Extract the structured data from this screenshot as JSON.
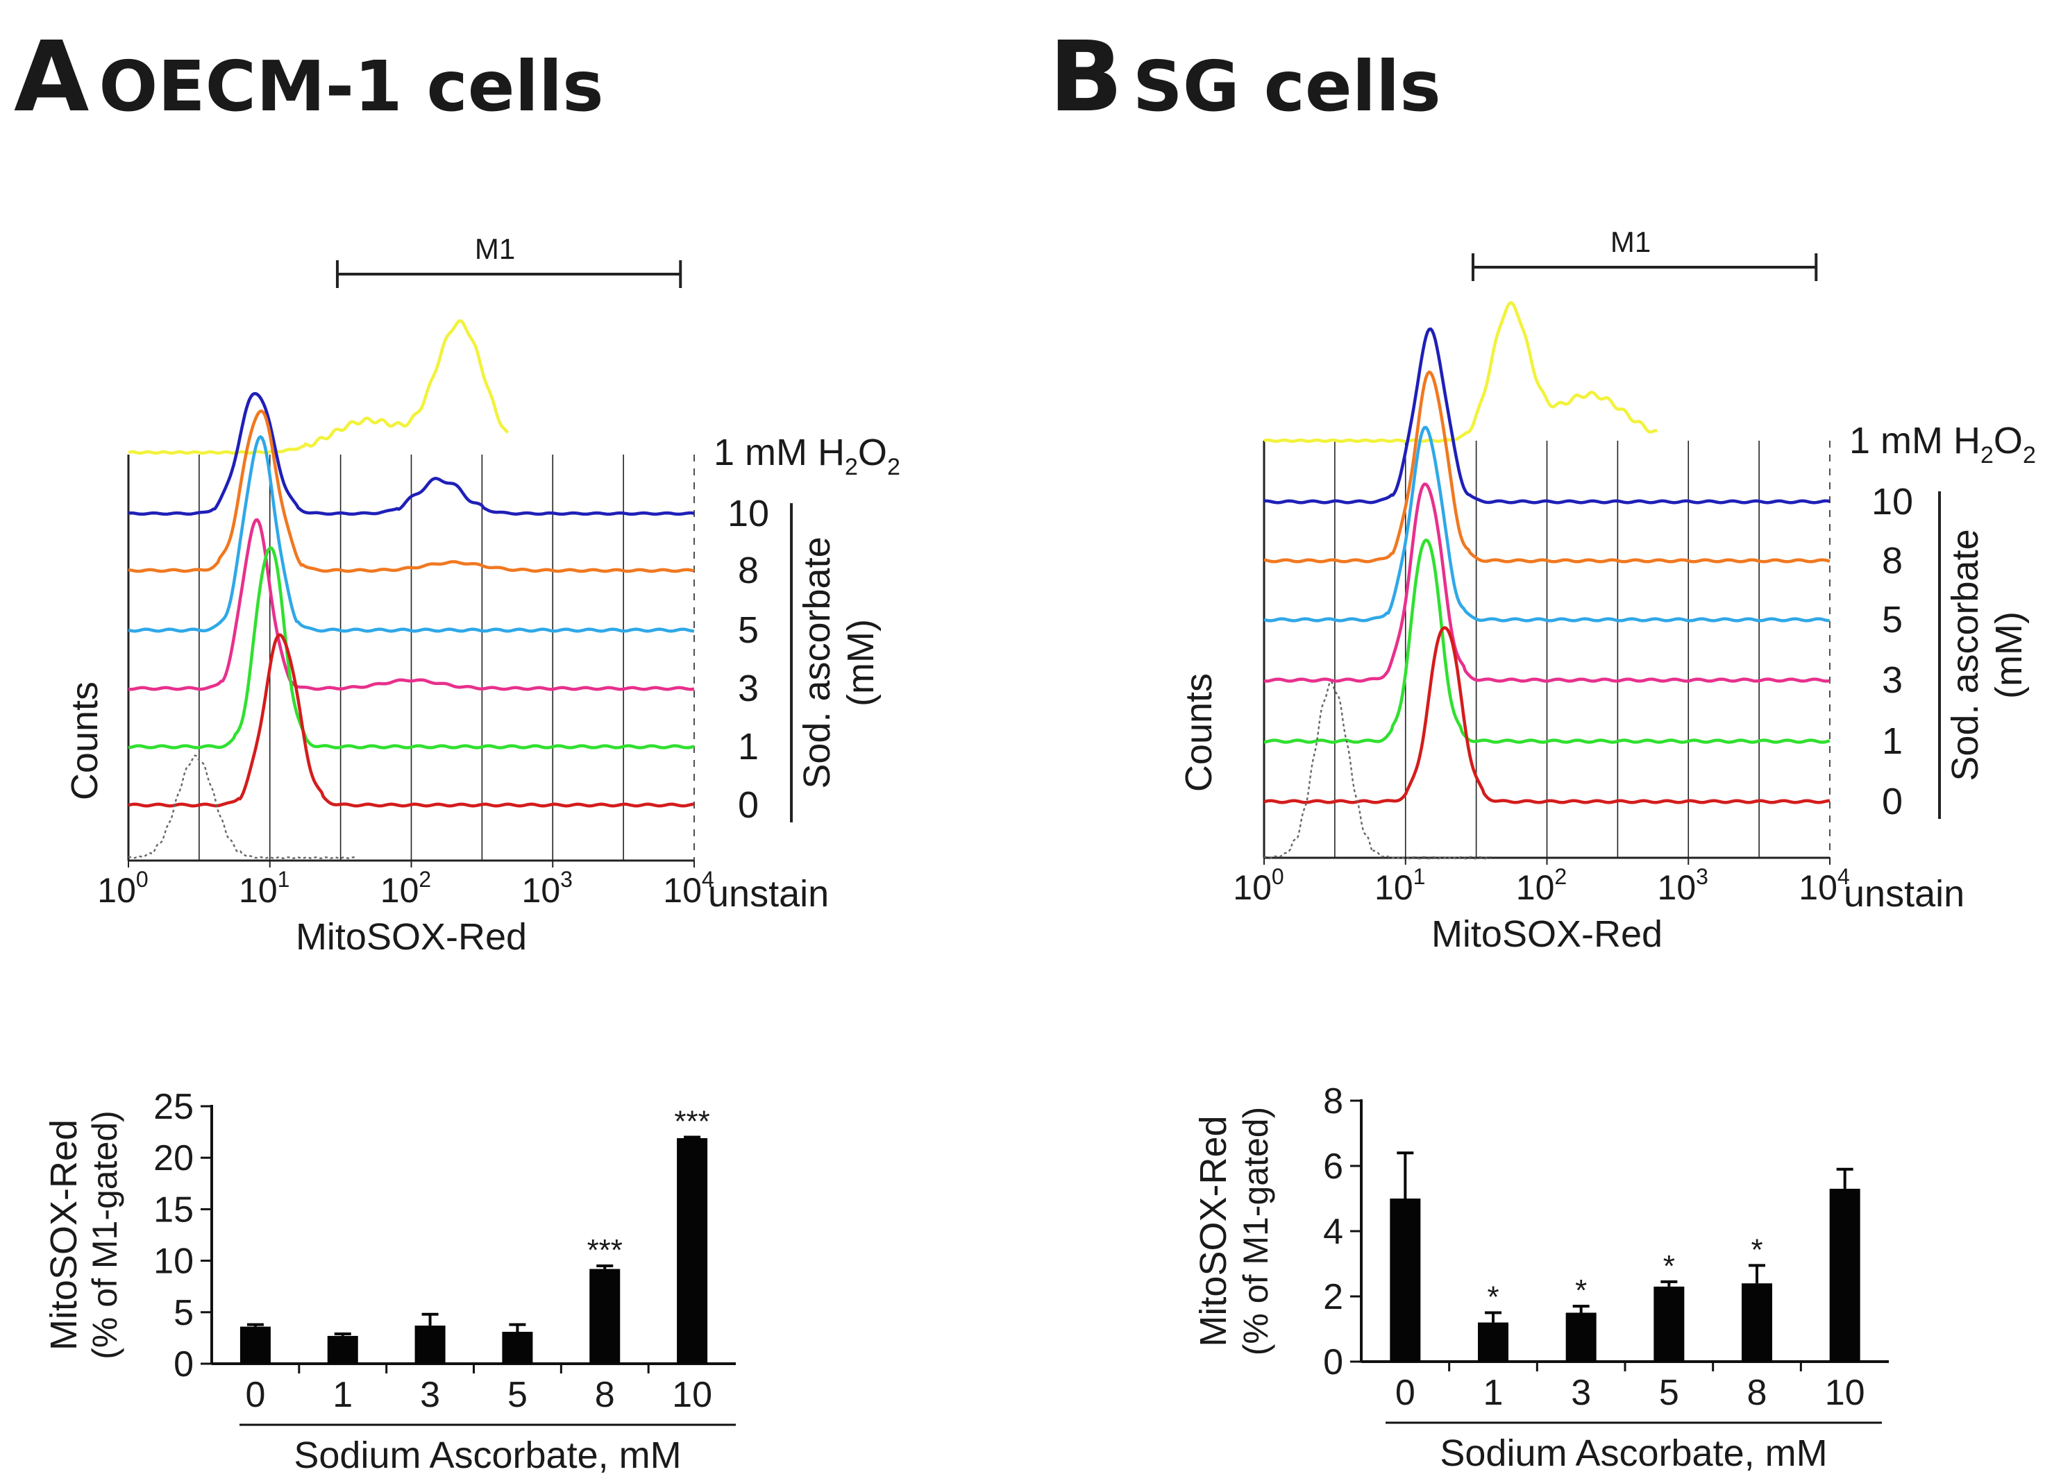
{
  "panels": [
    {
      "letter": "A",
      "title": "OECM-1 cells",
      "histogram": {
        "gate_label": "M1",
        "xlabel": "MitoSOX-Red",
        "ylabel": "Counts",
        "x_ticks": [
          {
            "base": "10",
            "exp": "0"
          },
          {
            "base": "10",
            "exp": "1"
          },
          {
            "base": "10",
            "exp": "2"
          },
          {
            "base": "10",
            "exp": "3"
          },
          {
            "base": "10",
            "exp": "4"
          }
        ],
        "h2o2_label": {
          "prefix": "1 mM H",
          "sub1": "2",
          "mid": "O",
          "sub2": "2"
        },
        "unstain_label": "unstain",
        "concentration_labels": [
          "10",
          "8",
          "5",
          "3",
          "1",
          "0"
        ],
        "bracket_label_line1": "Sod. ascorbate",
        "bracket_label_line2": "(mM)"
      },
      "bar_axis": {
        "ylabel_line1": "MitoSOX-Red",
        "ylabel_line2": "(% of M1-gated)",
        "xlabel": "Sodium Ascorbate, mM"
      }
    },
    {
      "letter": "B",
      "title": "SG cells",
      "histogram": {
        "gate_label": "M1",
        "xlabel": "MitoSOX-Red",
        "ylabel": "Counts",
        "x_ticks": [
          {
            "base": "10",
            "exp": "0"
          },
          {
            "base": "10",
            "exp": "1"
          },
          {
            "base": "10",
            "exp": "2"
          },
          {
            "base": "10",
            "exp": "3"
          },
          {
            "base": "10",
            "exp": "4"
          }
        ],
        "h2o2_label": {
          "prefix": "1 mM H",
          "sub1": "2",
          "mid": "O",
          "sub2": "2"
        },
        "unstain_label": "unstain",
        "concentration_labels": [
          "10",
          "8",
          "5",
          "3",
          "1",
          "0"
        ],
        "bracket_label_line1": "Sod. ascorbate",
        "bracket_label_line2": "(mM)"
      },
      "bar_axis": {
        "ylabel_line1": "MitoSOX-Red",
        "ylabel_line2": "(% of M1-gated)",
        "xlabel": "Sodium Ascorbate, mM"
      }
    }
  ],
  "chart_data": [
    {
      "type": "line",
      "title": "OECM-1 cells",
      "xlabel": "MitoSOX-Red",
      "ylabel": "Counts",
      "x_scale": "log",
      "xlim": [
        1,
        10000
      ],
      "gate": {
        "name": "M1",
        "range": [
          30,
          8000
        ]
      },
      "peak_units": "relative to trace baseline",
      "series": [
        {
          "name": "1 mM H2O2",
          "color": "#f2f23c",
          "peaks": [
            {
              "x": 50,
              "h": 0.25,
              "w": 0.25
            },
            {
              "x": 220,
              "h": 1.0,
              "w": 0.17
            }
          ]
        },
        {
          "name": "10",
          "color": "#1f1fb8",
          "peaks": [
            {
              "x": 8,
              "h": 1.0,
              "w": 0.12
            },
            {
              "x": 160,
              "h": 0.28,
              "w": 0.16
            }
          ]
        },
        {
          "name": "8",
          "color": "#f07820",
          "peaks": [
            {
              "x": 8.5,
              "h": 1.0,
              "w": 0.12
            },
            {
              "x": 200,
              "h": 0.05,
              "w": 0.2
            }
          ]
        },
        {
          "name": "5",
          "color": "#2fa8e8",
          "peaks": [
            {
              "x": 8.5,
              "h": 1.0,
              "w": 0.11
            }
          ]
        },
        {
          "name": "3",
          "color": "#e8308c",
          "peaks": [
            {
              "x": 8,
              "h": 1.0,
              "w": 0.1
            },
            {
              "x": 100,
              "h": 0.05,
              "w": 0.2
            }
          ]
        },
        {
          "name": "1",
          "color": "#30e030",
          "peaks": [
            {
              "x": 10,
              "h": 1.0,
              "w": 0.1
            }
          ]
        },
        {
          "name": "0",
          "color": "#d41c1c",
          "peaks": [
            {
              "x": 12,
              "h": 1.0,
              "w": 0.12
            }
          ]
        },
        {
          "name": "unstain",
          "color": "#666666",
          "dashed": true,
          "peaks": [
            {
              "x": 3,
              "h": 1.0,
              "w": 0.13
            }
          ]
        }
      ]
    },
    {
      "type": "bar",
      "title": "OECM-1 cells",
      "categories": [
        "0",
        "1",
        "3",
        "5",
        "8",
        "10"
      ],
      "values": [
        3.6,
        2.7,
        3.7,
        3.1,
        9.2,
        21.9
      ],
      "errors": [
        0.2,
        0.2,
        1.1,
        0.7,
        0.3,
        0.1
      ],
      "significance": [
        "",
        "",
        "",
        "",
        "***",
        "***"
      ],
      "xlabel": "Sodium Ascorbate, mM",
      "ylabel": "MitoSOX-Red (% of M1-gated)",
      "ylim": [
        0,
        25
      ],
      "yticks": [
        0,
        5,
        10,
        15,
        20,
        25
      ]
    },
    {
      "type": "line",
      "title": "SG cells",
      "xlabel": "MitoSOX-Red",
      "ylabel": "Counts",
      "x_scale": "log",
      "xlim": [
        1,
        10000
      ],
      "gate": {
        "name": "M1",
        "range": [
          30,
          8000
        ]
      },
      "peak_units": "relative to trace baseline",
      "series": [
        {
          "name": "1 mM H2O2",
          "color": "#f2f23c",
          "peaks": [
            {
              "x": 55,
              "h": 1.0,
              "w": 0.13
            },
            {
              "x": 200,
              "h": 0.35,
              "w": 0.25
            }
          ]
        },
        {
          "name": "10",
          "color": "#1f1fb8",
          "peaks": [
            {
              "x": 15,
              "h": 1.0,
              "w": 0.11
            }
          ]
        },
        {
          "name": "8",
          "color": "#f07820",
          "peaks": [
            {
              "x": 15,
              "h": 1.0,
              "w": 0.11
            }
          ]
        },
        {
          "name": "5",
          "color": "#2fa8e8",
          "peaks": [
            {
              "x": 14,
              "h": 1.0,
              "w": 0.11
            }
          ]
        },
        {
          "name": "3",
          "color": "#e8308c",
          "peaks": [
            {
              "x": 14,
              "h": 1.0,
              "w": 0.11
            }
          ]
        },
        {
          "name": "1",
          "color": "#30e030",
          "peaks": [
            {
              "x": 14,
              "h": 1.0,
              "w": 0.1
            }
          ]
        },
        {
          "name": "0",
          "color": "#d41c1c",
          "peaks": [
            {
              "x": 19,
              "h": 1.0,
              "w": 0.11
            }
          ]
        },
        {
          "name": "unstain",
          "color": "#666666",
          "dashed": true,
          "peaks": [
            {
              "x": 3,
              "h": 1.0,
              "w": 0.12
            }
          ]
        }
      ]
    },
    {
      "type": "bar",
      "title": "SG cells",
      "categories": [
        "0",
        "1",
        "3",
        "5",
        "8",
        "10"
      ],
      "values": [
        5.0,
        1.2,
        1.5,
        2.3,
        2.4,
        5.3
      ],
      "errors": [
        1.4,
        0.3,
        0.2,
        0.15,
        0.55,
        0.6
      ],
      "significance": [
        "",
        "*",
        "*",
        "*",
        "*",
        ""
      ],
      "xlabel": "Sodium Ascorbate, mM",
      "ylabel": "MitoSOX-Red (% of M1-gated)",
      "ylim": [
        0,
        8
      ],
      "yticks": [
        0,
        2,
        4,
        6,
        8
      ]
    }
  ]
}
